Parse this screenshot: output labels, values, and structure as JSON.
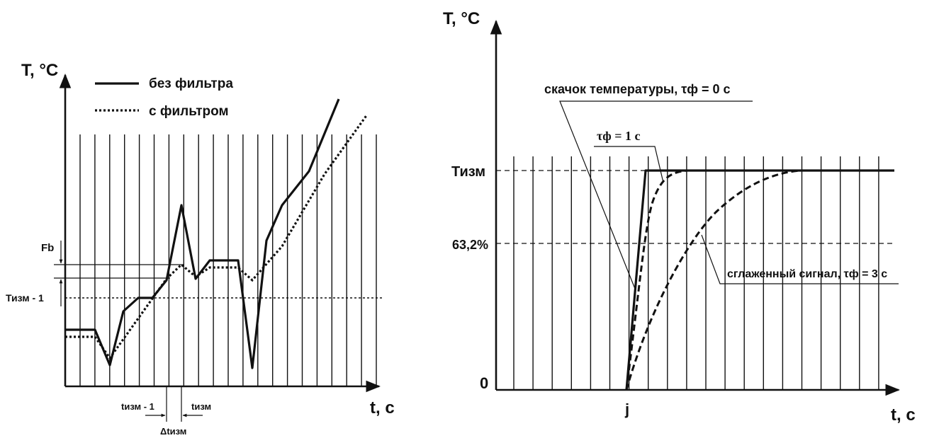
{
  "left_chart": {
    "axis_y_label": "T, °C",
    "axis_x_label": "t, с",
    "legend": {
      "solid_label": "без фильтра",
      "dotted_label": "с фильтром"
    },
    "label_fb": "Fb",
    "label_t_prev": "Тизм - 1",
    "label_t_meas_prev": "tизм - 1",
    "label_t_meas": "tизм",
    "label_delta_t": "Δtизм"
  },
  "right_chart": {
    "axis_y_label": "T, °C",
    "axis_x_label": "t, с",
    "label_t_meas": "Тизм",
    "label_632": "63,2%",
    "label_zero": "0",
    "label_j": "j",
    "annotation_step": "скачок температуры, τф = 0 с",
    "annotation_tau1": "τф = 1 с",
    "annotation_smooth": "сглаженный сигнал, τф = 3 с"
  },
  "colors": {
    "ink": "#111111",
    "background": "#ffffff"
  }
}
